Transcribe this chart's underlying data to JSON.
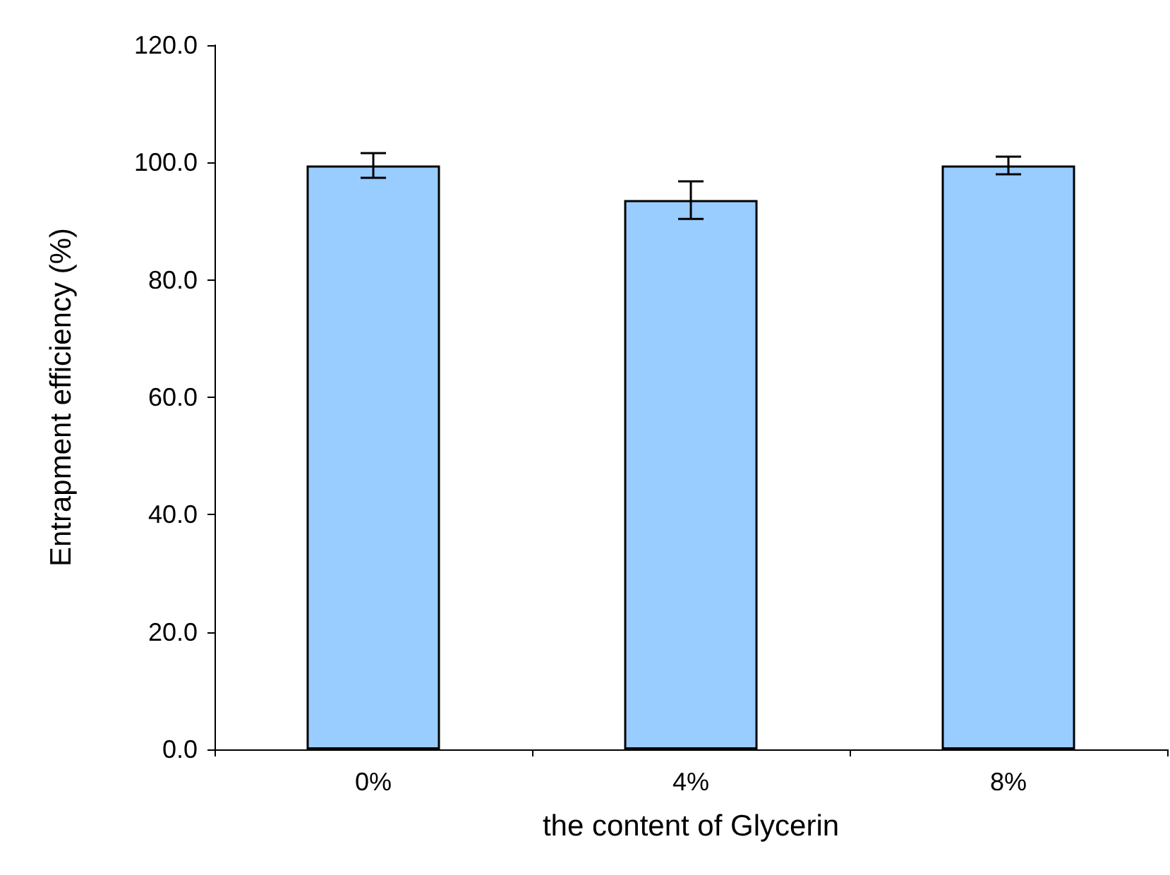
{
  "chart_data": {
    "type": "bar",
    "xlabel": "the content of Glycerin",
    "ylabel": "Entrapment efficiency (%)",
    "categories": [
      "0%",
      "4%",
      "8%"
    ],
    "values": [
      99.5,
      93.6,
      99.5
    ],
    "errors": [
      2.1,
      3.2,
      1.5
    ],
    "color": "#99ccff",
    "ylim": [
      0,
      120
    ],
    "yticks": [
      {
        "value": 0,
        "label": "0.0"
      },
      {
        "value": 20,
        "label": "20.0"
      },
      {
        "value": 40,
        "label": "40.0"
      },
      {
        "value": 60,
        "label": "60.0"
      },
      {
        "value": 80,
        "label": "80.0"
      },
      {
        "value": 100,
        "label": "100.0"
      },
      {
        "value": 120,
        "label": "120.0"
      }
    ],
    "grid": false
  }
}
